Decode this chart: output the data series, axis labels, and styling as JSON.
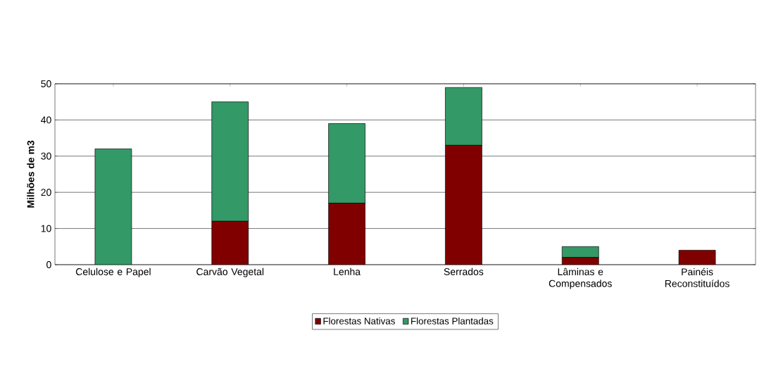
{
  "chart_data": {
    "type": "bar",
    "stacked": true,
    "ylabel": "Milhões de m3",
    "categories": [
      "Celulose e Papel",
      "Carvão Vegetal",
      "Lenha",
      "Serrados",
      "Lâminas e Compensados",
      "Painéis Reconstituídos"
    ],
    "series": [
      {
        "name": "Florestas Nativas",
        "color": "#800000",
        "values": [
          0,
          12,
          17,
          33,
          2,
          4
        ]
      },
      {
        "name": "Florestas Plantadas",
        "color": "#339966",
        "values": [
          32,
          33,
          22,
          16,
          3,
          0
        ]
      }
    ],
    "ylim": [
      0,
      50
    ],
    "yticks": [
      0,
      10,
      20,
      30,
      40,
      50
    ],
    "grid": "y",
    "legend": "bottom"
  }
}
